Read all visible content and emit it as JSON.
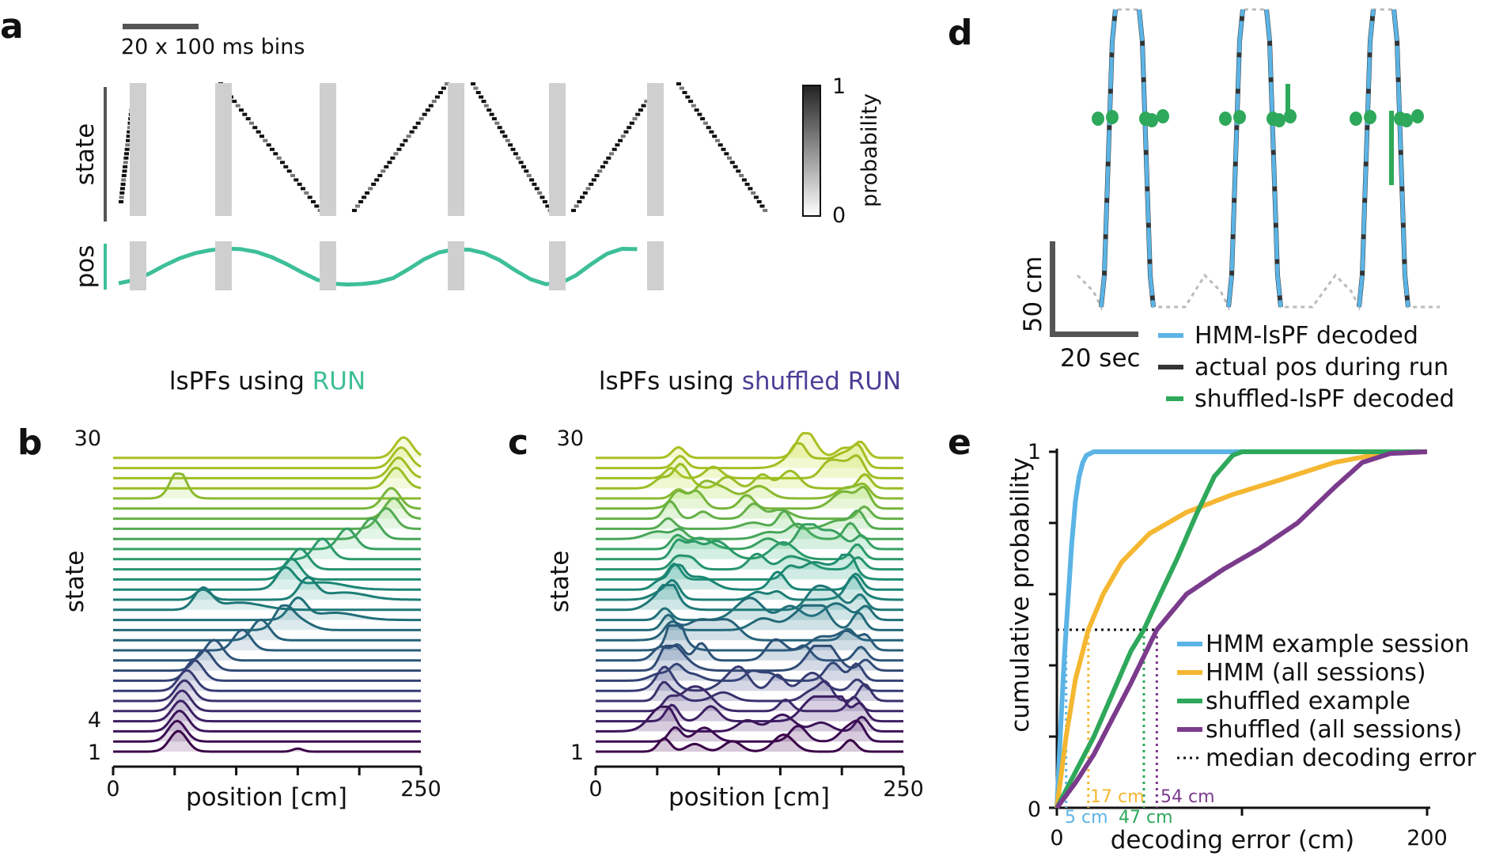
{
  "panels": [
    {
      "id": "a",
      "label": "a",
      "scalebar_label": "20 x 100 ms bins",
      "state_axis_label": "state",
      "pos_axis_label": "pos",
      "colorbar": {
        "label": "probability",
        "min_label": "0",
        "max_label": "1"
      }
    },
    {
      "id": "b",
      "label": "b",
      "title_prefix": "lsPFs using ",
      "title_highlight": "RUN",
      "title_highlight_color": "#3dbf98",
      "xlabel": "position [cm]",
      "ylabel": "state",
      "xtick_labels": [
        "0",
        "250"
      ],
      "state_tick_labels": [
        "30",
        "4",
        "1"
      ]
    },
    {
      "id": "c",
      "label": "c",
      "title_prefix": "lsPFs using ",
      "title_highlight": "shuffled RUN",
      "title_highlight_color": "#4b3f96",
      "xlabel": "position [cm]",
      "ylabel": "state",
      "xtick_labels": [
        "0",
        "250"
      ],
      "state_tick_labels": [
        "30",
        "1"
      ]
    },
    {
      "id": "d",
      "label": "d",
      "scalebar_y_label": "50 cm",
      "scalebar_x_label": "20 sec",
      "legend": [
        {
          "label": "HMM-lsPF decoded",
          "color": "#5bb4e5"
        },
        {
          "label": "actual pos during run",
          "color": "#333333"
        },
        {
          "label": "shuffled-lsPF decoded",
          "color": "#2ea85a"
        }
      ]
    },
    {
      "id": "e",
      "label": "e",
      "xlabel": "decoding error (cm)",
      "ylabel": "cumulative probability",
      "xtick_labels": [
        "0",
        "200"
      ],
      "ytick_labels": [
        "0",
        "1"
      ],
      "legend": [
        {
          "label": "HMM example session",
          "color": "#5bb4e5"
        },
        {
          "label": "HMM (all sessions)",
          "color": "#f5b731"
        },
        {
          "label": "shuffled example",
          "color": "#2ea85a"
        },
        {
          "label": "shuffled (all sessions)",
          "color": "#7b3b8c"
        },
        {
          "label": "median decoding error",
          "color": "#111111"
        }
      ],
      "median_labels": [
        {
          "text": "5 cm",
          "color": "#5bb4e5"
        },
        {
          "text": "17 cm",
          "color": "#f5b731"
        },
        {
          "text": "47 cm",
          "color": "#2ea85a"
        },
        {
          "text": "54 cm",
          "color": "#7b3b8c"
        }
      ]
    }
  ],
  "chart_data": [
    {
      "panel": "a",
      "type": "heatmap",
      "title": "",
      "xlabel": "",
      "ylabel": "state",
      "n_states": 30,
      "bin_ms": 100,
      "scalebar_bins": 20,
      "colorbar_range": [
        0,
        1
      ],
      "segments": [
        {
          "id": 1,
          "state_start": 3,
          "state_end": 27
        },
        {
          "id": 2,
          "state_start": 30,
          "state_end": 1
        },
        {
          "id": 3,
          "state_start": 1,
          "state_end": 30
        },
        {
          "id": 4,
          "state_start": 30,
          "state_end": 1
        },
        {
          "id": 5,
          "state_start": 1,
          "state_end": 26
        },
        {
          "id": 6,
          "state_start": 30,
          "state_end": 1
        }
      ]
    },
    {
      "panel": "a",
      "type": "line",
      "ylabel": "pos",
      "x_bins": [
        0,
        8,
        16,
        24,
        32,
        40,
        48,
        56,
        64,
        72,
        80,
        88,
        96,
        104,
        112,
        120,
        128,
        136,
        144,
        152,
        160,
        168,
        176,
        184,
        192,
        200,
        208,
        216,
        224,
        232,
        240,
        248,
        256,
        264,
        272
      ],
      "pos_cm": [
        10,
        32,
        75,
        130,
        178,
        212,
        233,
        243,
        240,
        222,
        188,
        140,
        85,
        35,
        8,
        2,
        6,
        18,
        45,
        105,
        170,
        218,
        238,
        236,
        212,
        165,
        98,
        38,
        5,
        12,
        65,
        140,
        208,
        242,
        240
      ],
      "ylim": [
        0,
        250
      ]
    },
    {
      "panel": "b",
      "type": "line",
      "title": "lsPFs using RUN",
      "xlabel": "position [cm]",
      "ylabel": "state",
      "xlim": [
        0,
        250
      ],
      "n_states": 30,
      "peak_positions_cm": [
        53,
        52,
        54,
        55,
        56,
        58,
        60,
        66,
        74,
        82,
        105,
        120,
        138,
        150,
        73,
        158,
        140,
        145,
        152,
        170,
        190,
        210,
        222,
        228,
        226,
        53,
        230,
        232,
        234,
        236
      ]
    },
    {
      "panel": "c",
      "type": "line",
      "title": "lsPFs using shuffled RUN",
      "xlabel": "position [cm]",
      "ylabel": "state",
      "xlim": [
        0,
        250
      ],
      "n_states": 30
    },
    {
      "panel": "d",
      "type": "line",
      "title": "",
      "series": [
        {
          "name": "HMM-lsPF decoded"
        },
        {
          "name": "actual pos during run"
        },
        {
          "name": "shuffled-lsPF decoded"
        }
      ],
      "scalebar_cm": 50,
      "scalebar_sec": 20
    },
    {
      "panel": "e",
      "type": "line",
      "title": "",
      "xlabel": "decoding error (cm)",
      "ylabel": "cumulative probability",
      "xlim": [
        0,
        200
      ],
      "ylim": [
        0,
        1
      ],
      "series": [
        {
          "name": "HMM example session",
          "x": [
            0,
            2,
            4,
            5,
            6,
            8,
            10,
            12,
            14,
            16,
            20,
            30,
            200
          ],
          "y": [
            0,
            0.22,
            0.42,
            0.5,
            0.58,
            0.74,
            0.86,
            0.93,
            0.97,
            0.99,
            1.0,
            1.0,
            1.0
          ]
        },
        {
          "name": "HMM (all sessions)",
          "x": [
            0,
            5,
            10,
            17,
            25,
            35,
            50,
            70,
            95,
            120,
            150,
            175,
            200
          ],
          "y": [
            0,
            0.2,
            0.36,
            0.5,
            0.6,
            0.69,
            0.77,
            0.83,
            0.88,
            0.92,
            0.97,
            0.995,
            1.0
          ]
        },
        {
          "name": "shuffled example",
          "x": [
            0,
            10,
            20,
            30,
            40,
            47,
            55,
            65,
            75,
            85,
            95,
            100,
            200
          ],
          "y": [
            0,
            0.1,
            0.2,
            0.32,
            0.44,
            0.5,
            0.59,
            0.7,
            0.82,
            0.93,
            0.99,
            1.0,
            1.0
          ]
        },
        {
          "name": "shuffled (all sessions)",
          "x": [
            0,
            10,
            20,
            30,
            40,
            54,
            70,
            90,
            110,
            130,
            150,
            165,
            180,
            200
          ],
          "y": [
            0,
            0.07,
            0.15,
            0.25,
            0.35,
            0.5,
            0.6,
            0.67,
            0.73,
            0.8,
            0.9,
            0.97,
            0.995,
            1.0
          ]
        }
      ],
      "median_error_cm": [
        5,
        17,
        47,
        54
      ],
      "median_level": 0.5
    }
  ]
}
